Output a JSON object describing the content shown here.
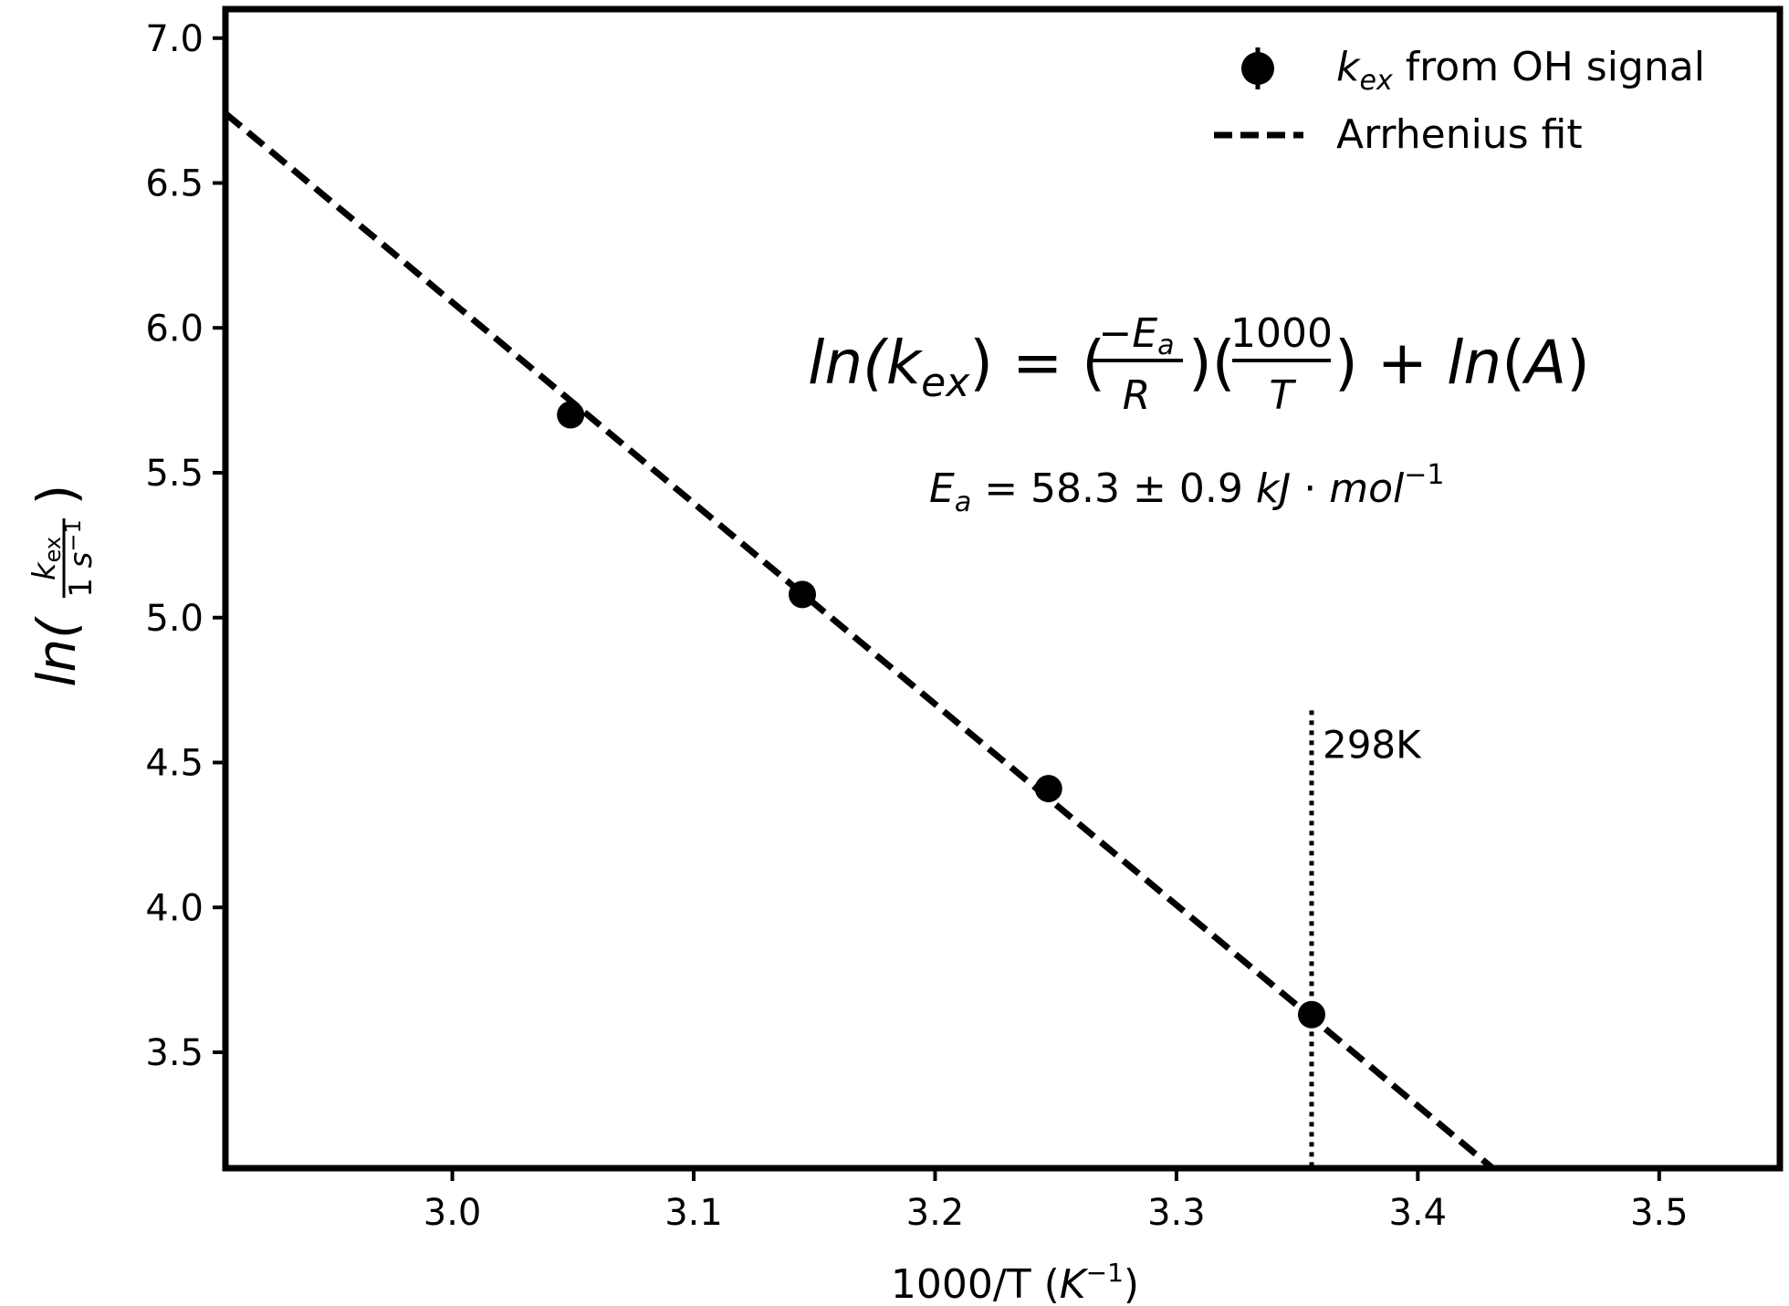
{
  "chart_data": {
    "type": "scatter",
    "xlabel": "1000/T (K⁻¹)",
    "ylabel": "ln(k_ex / 1 s⁻¹)",
    "xlim": [
      2.906,
      3.55
    ],
    "ylim": [
      3.1,
      7.1
    ],
    "x_ticks": [
      3.0,
      3.1,
      3.2,
      3.3,
      3.4,
      3.5
    ],
    "x_tick_labels": [
      "3.0",
      "3.1",
      "3.2",
      "3.3",
      "3.4",
      "3.5"
    ],
    "y_ticks": [
      3.5,
      4.0,
      4.5,
      5.0,
      5.5,
      6.0,
      6.5,
      7.0
    ],
    "y_tick_labels": [
      "3.5",
      "4.0",
      "4.5",
      "5.0",
      "5.5",
      "6.0",
      "6.5",
      "7.0"
    ],
    "grid": false,
    "legend_position": "top-right",
    "series": [
      {
        "name": "k_ex from OH signal",
        "kind": "points-with-errorbars",
        "x": [
          3.049,
          3.145,
          3.247,
          3.356
        ],
        "y": [
          5.7,
          5.08,
          4.41,
          3.63
        ],
        "err": [
          0.02,
          0.02,
          0.02,
          0.02
        ]
      },
      {
        "name": "Arrhenius fit",
        "kind": "dashed-line",
        "x": [
          2.906,
          3.431
        ],
        "y": [
          6.74,
          3.1
        ]
      }
    ],
    "reference_line": {
      "x": 3.356,
      "y_top": 4.68,
      "label": "298K"
    },
    "annotations": {
      "equation": "ln(k_ex) = (−E_a / R)(1000 / T) + ln(A)",
      "activation_energy": "E_a = 58.3 ± 0.9 kJ·mol⁻¹"
    }
  }
}
